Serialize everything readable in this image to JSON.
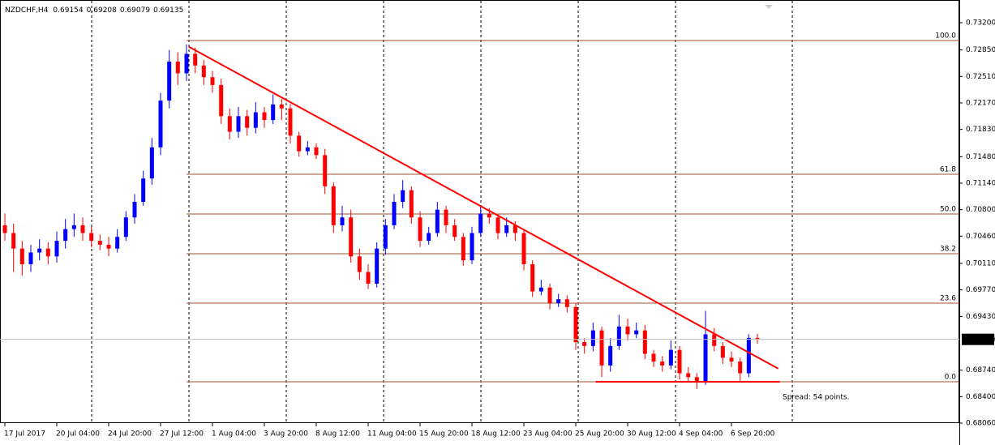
{
  "chart_data": {
    "type": "candlestick",
    "symbol": "NZDCHF,H4",
    "up_color": "#0000ff",
    "down_color": "#ff0000",
    "open": [
      0.706,
      0.705,
      0.703,
      0.701,
      0.7025,
      0.703,
      0.702,
      0.704,
      0.7055,
      0.706,
      0.705,
      0.704,
      0.7035,
      0.703,
      0.7045,
      0.707,
      0.709,
      0.712,
      0.716,
      0.722,
      0.727,
      0.7255,
      0.728,
      0.7265,
      0.725,
      0.724,
      0.72,
      0.718,
      0.72,
      0.7185,
      0.7205,
      0.7195,
      0.7215,
      0.721,
      0.7175,
      0.7155,
      0.716,
      0.715,
      0.711,
      0.706,
      0.707,
      0.702,
      0.7,
      0.6985,
      0.703,
      0.706,
      0.709,
      0.7105,
      0.707,
      0.704,
      0.705,
      0.708,
      0.706,
      0.7045,
      0.7015,
      0.705,
      0.7075,
      0.707,
      0.705,
      0.706,
      0.705,
      0.701,
      0.6975,
      0.698,
      0.696,
      0.6965,
      0.6955,
      0.691,
      0.6905,
      0.6925,
      0.688,
      0.6905,
      0.693,
      0.692,
      0.6925,
      0.6895,
      0.6885,
      0.688,
      0.69,
      0.687,
      0.6865,
      0.686,
      0.692,
      0.6905,
      0.689,
      0.6885,
      0.687,
      0.69154
    ],
    "high": [
      0.7075,
      0.7062,
      0.704,
      0.7035,
      0.7042,
      0.7038,
      0.7052,
      0.7068,
      0.7075,
      0.707,
      0.7058,
      0.7048,
      0.7045,
      0.7055,
      0.7078,
      0.71,
      0.713,
      0.7172,
      0.723,
      0.7285,
      0.7282,
      0.7292,
      0.7288,
      0.7272,
      0.7258,
      0.7248,
      0.721,
      0.7212,
      0.7208,
      0.7218,
      0.7212,
      0.7228,
      0.7222,
      0.7216,
      0.718,
      0.7168,
      0.7165,
      0.7158,
      0.7115,
      0.7085,
      0.708,
      0.703,
      0.701,
      0.7038,
      0.7068,
      0.71,
      0.7118,
      0.711,
      0.7078,
      0.7058,
      0.709,
      0.7085,
      0.7068,
      0.705,
      0.7058,
      0.7085,
      0.7082,
      0.7075,
      0.707,
      0.7065,
      0.7055,
      0.7015,
      0.699,
      0.6985,
      0.6972,
      0.697,
      0.696,
      0.6915,
      0.6935,
      0.693,
      0.6915,
      0.6945,
      0.694,
      0.6935,
      0.6932,
      0.69,
      0.6892,
      0.6912,
      0.6905,
      0.6878,
      0.687,
      0.695,
      0.6928,
      0.691,
      0.6898,
      0.689,
      0.692,
      0.69208
    ],
    "low": [
      0.704,
      0.7,
      0.6995,
      0.7,
      0.7015,
      0.701,
      0.7012,
      0.703,
      0.7045,
      0.704,
      0.7032,
      0.7028,
      0.702,
      0.7025,
      0.704,
      0.7062,
      0.7085,
      0.7112,
      0.715,
      0.721,
      0.724,
      0.7245,
      0.7255,
      0.724,
      0.723,
      0.719,
      0.717,
      0.7172,
      0.7175,
      0.7178,
      0.7185,
      0.719,
      0.7195,
      0.7165,
      0.7148,
      0.715,
      0.7145,
      0.71,
      0.705,
      0.7052,
      0.7012,
      0.699,
      0.6978,
      0.698,
      0.7022,
      0.7055,
      0.7082,
      0.7062,
      0.7032,
      0.7035,
      0.7045,
      0.705,
      0.704,
      0.7008,
      0.701,
      0.7045,
      0.7062,
      0.7042,
      0.7045,
      0.704,
      0.7002,
      0.6968,
      0.697,
      0.6952,
      0.6955,
      0.6948,
      0.69,
      0.6895,
      0.6898,
      0.6865,
      0.6872,
      0.69,
      0.6912,
      0.6915,
      0.6888,
      0.6878,
      0.6872,
      0.6875,
      0.6862,
      0.6858,
      0.685,
      0.6855,
      0.6898,
      0.6882,
      0.6878,
      0.686,
      0.6865,
      0.69079
    ],
    "close": [
      0.705,
      0.703,
      0.701,
      0.7025,
      0.703,
      0.702,
      0.704,
      0.7055,
      0.706,
      0.705,
      0.704,
      0.7035,
      0.703,
      0.7045,
      0.707,
      0.709,
      0.712,
      0.716,
      0.722,
      0.727,
      0.7255,
      0.728,
      0.7265,
      0.725,
      0.724,
      0.72,
      0.718,
      0.72,
      0.7185,
      0.7205,
      0.7195,
      0.7215,
      0.721,
      0.7175,
      0.7155,
      0.716,
      0.715,
      0.711,
      0.706,
      0.707,
      0.702,
      0.7,
      0.6985,
      0.703,
      0.706,
      0.709,
      0.7105,
      0.707,
      0.704,
      0.705,
      0.708,
      0.706,
      0.7045,
      0.7015,
      0.705,
      0.7075,
      0.707,
      0.705,
      0.706,
      0.705,
      0.701,
      0.6975,
      0.698,
      0.696,
      0.6965,
      0.6955,
      0.691,
      0.6905,
      0.6925,
      0.688,
      0.6905,
      0.693,
      0.692,
      0.6925,
      0.6895,
      0.6885,
      0.688,
      0.69,
      0.687,
      0.6865,
      0.686,
      0.692,
      0.6905,
      0.689,
      0.6885,
      0.687,
      0.69154,
      0.69135
    ],
    "xlim": [
      -0.5625,
      110.34
    ],
    "ylim": [
      0.6806,
      0.73491
    ],
    "xticks": [
      {
        "value": 0,
        "label": "17 Jul 2017"
      },
      {
        "value": 6,
        "label": "20 Jul 04:00"
      },
      {
        "value": 12,
        "label": "24 Jul 20:00"
      },
      {
        "value": 18,
        "label": "27 Jul 12:00"
      },
      {
        "value": 24,
        "label": "1 Aug 04:00"
      },
      {
        "value": 30,
        "label": "3 Aug 20:00"
      },
      {
        "value": 36,
        "label": "8 Aug 12:00"
      },
      {
        "value": 42,
        "label": "11 Aug 04:00"
      },
      {
        "value": 48,
        "label": "15 Aug 20:00"
      },
      {
        "value": 54,
        "label": "18 Aug 12:00"
      },
      {
        "value": 60,
        "label": "23 Aug 04:00"
      },
      {
        "value": 66,
        "label": "25 Aug 20:00"
      },
      {
        "value": 72,
        "label": "30 Aug 12:00"
      },
      {
        "value": 78,
        "label": "4 Sep 04:00"
      },
      {
        "value": 84,
        "label": "6 Sep 20:00"
      }
    ],
    "yticks": [
      {
        "value": 0.732,
        "label": "0.73200"
      },
      {
        "value": 0.7285,
        "label": "0.72850"
      },
      {
        "value": 0.7251,
        "label": "0.72510"
      },
      {
        "value": 0.7217,
        "label": "0.72170"
      },
      {
        "value": 0.7183,
        "label": "0.71830"
      },
      {
        "value": 0.7148,
        "label": "0.71480"
      },
      {
        "value": 0.7114,
        "label": "0.71140"
      },
      {
        "value": 0.708,
        "label": "0.70800"
      },
      {
        "value": 0.7046,
        "label": "0.70460"
      },
      {
        "value": 0.7011,
        "label": "0.70110"
      },
      {
        "value": 0.6977,
        "label": "0.69770"
      },
      {
        "value": 0.6943,
        "label": "0.69430"
      },
      {
        "value": 0.6874,
        "label": "0.68740"
      },
      {
        "value": 0.684,
        "label": "0.68400"
      },
      {
        "value": 0.6806,
        "label": "0.68060"
      }
    ],
    "vgrid": [
      10.03,
      21.28,
      32.53,
      43.78,
      55.03,
      66.28,
      77.53,
      91.03
    ],
    "lines": [
      {
        "x": [
          21.28,
          89.4
        ],
        "y": [
          0.7289,
          0.6876
        ],
        "color": "#ff0000"
      },
      {
        "x": [
          68.3,
          89.6
        ],
        "y": [
          0.6859,
          0.6859
        ],
        "color": "#ff0000"
      }
    ],
    "fib": {
      "start": 21,
      "color": "#a0522d",
      "levels": [
        "100.0",
        "61.8",
        "50.0",
        "38.2",
        "23.6",
        "0.0"
      ],
      "prices": [
        0.72971,
        0.71254,
        0.70744,
        0.70234,
        0.696,
        0.6859
      ]
    },
    "annotation": "Spread: 54 points.",
    "annotation_color": "#ff0000"
  }
}
